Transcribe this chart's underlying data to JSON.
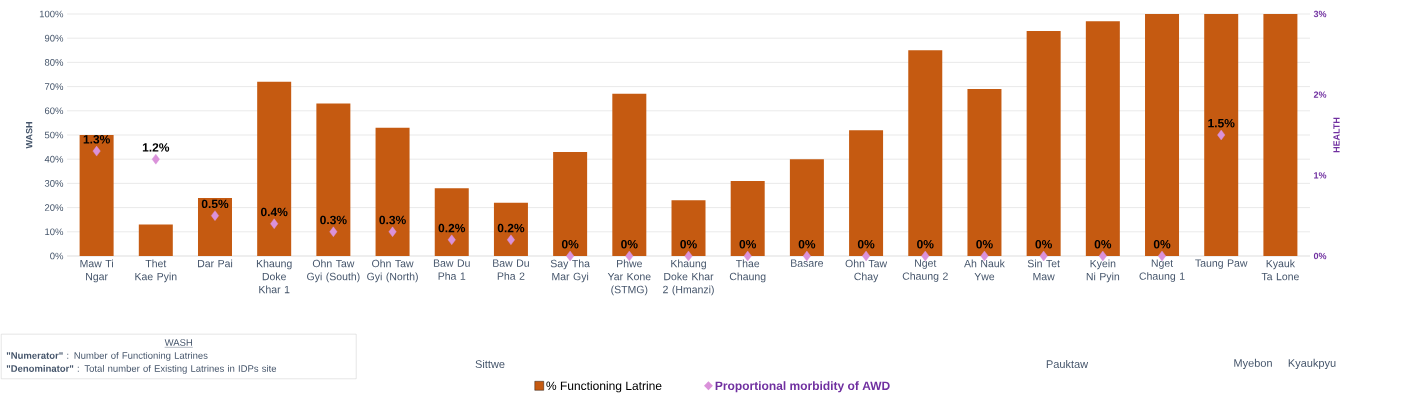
{
  "chart_data": {
    "type": "bar",
    "ylabel": "WASH",
    "y2label": "HEALTH",
    "categories": [
      "Maw Ti Ngar",
      "Thet Kae Pyin",
      "Dar Pai",
      "Khaung Doke Khar 1",
      "Ohn Taw Gyi (South)",
      "Ohn Taw Gyi (North)",
      "Baw Du Pha 1",
      "Baw Du Pha 2",
      "Say Tha Mar Gyi",
      "Phwe Yar Kone (STMG)",
      "Khaung Doke Khar 2 (Hmanzi)",
      "Thae Chaung",
      "Basare",
      "Ohn Taw Chay",
      "Nget Chaung 2",
      "Ah Nauk Ywe",
      "Sin Tet Maw",
      "Kyein Ni Pyin",
      "Nget Chaung 1",
      "Taung Paw",
      "Kyauk Ta Lone"
    ],
    "series": [
      {
        "name": "% Functioning Latrine",
        "color": "#c55a11",
        "values": [
          50,
          13,
          24,
          72,
          63,
          53,
          28,
          22,
          43,
          67,
          23,
          31,
          40,
          52,
          85,
          69,
          93,
          97,
          100,
          100,
          100
        ]
      },
      {
        "name": "Proportional morbidity of AWD",
        "type": "scatter",
        "axis": "y2",
        "marker": "diamond",
        "color": "#da92da",
        "values": [
          1.3,
          1.2,
          0.5,
          0.4,
          0.3,
          0.3,
          0.2,
          0.2,
          0,
          0,
          0,
          0,
          0,
          0,
          0,
          0,
          0,
          0,
          0,
          1.5,
          null
        ],
        "value_labels": [
          "1.3%",
          "1.2%",
          "0.5%",
          "0.4%",
          "0.3%",
          "0.3%",
          "0.2%",
          "0.2%",
          "0%",
          "0%",
          "0%",
          "0%",
          "0%",
          "0%",
          "0%",
          "0%",
          "0%",
          "0%",
          "0%",
          "1.5%",
          null
        ]
      }
    ],
    "ylim": [
      0,
      100
    ],
    "yticks": [
      {
        "value": 0,
        "label": "0%"
      },
      {
        "value": 10,
        "label": "10%"
      },
      {
        "value": 20,
        "label": "20%"
      },
      {
        "value": 30,
        "label": "30%"
      },
      {
        "value": 40,
        "label": "40%"
      },
      {
        "value": 50,
        "label": "50%"
      },
      {
        "value": 60,
        "label": "60%"
      },
      {
        "value": 70,
        "label": "70%"
      },
      {
        "value": 80,
        "label": "80%"
      },
      {
        "value": 90,
        "label": "90%"
      },
      {
        "value": 100,
        "label": "100%"
      }
    ],
    "y2lim": [
      0,
      3
    ],
    "y2ticks": [
      {
        "value": 0,
        "label": "0%"
      },
      {
        "value": 1,
        "label": "1%"
      },
      {
        "value": 2,
        "label": "2%"
      },
      {
        "value": 3,
        "label": "3%"
      }
    ],
    "grid": "y",
    "legend": "bottom",
    "annotations": [
      "Sittwe",
      "Pauktaw",
      "Myebon",
      "Kyaukpyu",
      "WASH",
      "**\"Numerator\"** : Number of Functioning Latrines",
      "**\"Denominator\"** : Total  number of Existing Latrines in IDPs site"
    ]
  }
}
